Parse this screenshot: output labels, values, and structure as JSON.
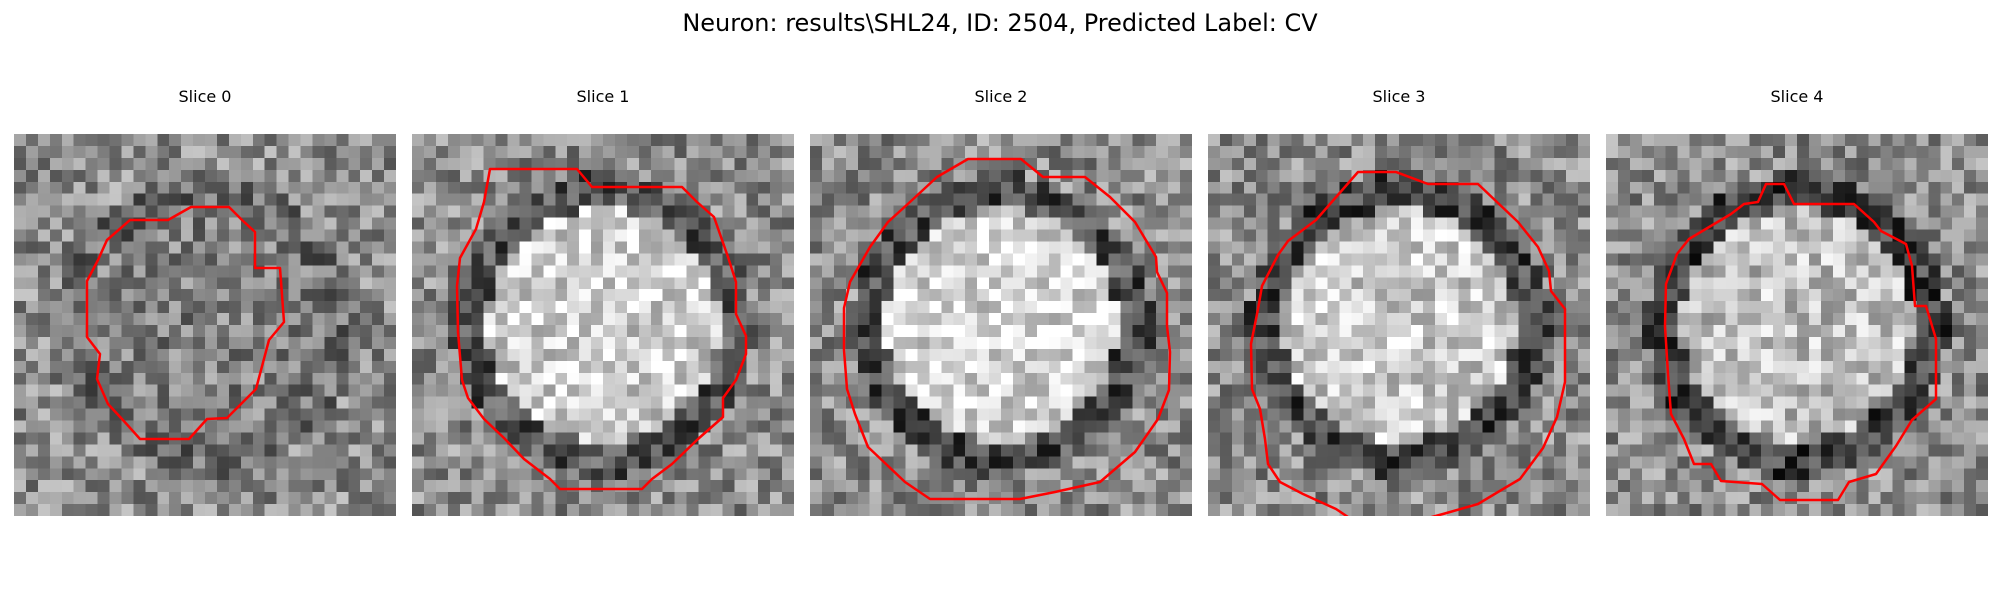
{
  "figure": {
    "title": "Neuron: results\\SHL24, ID: 2504, Predicted Label: CV"
  },
  "slices": [
    {
      "title": "Slice 0",
      "center_brightness": 0.5,
      "rim_darkness": 0.25
    },
    {
      "title": "Slice 1",
      "center_brightness": 0.82,
      "rim_darkness": 0.45
    },
    {
      "title": "Slice 2",
      "center_brightness": 0.85,
      "rim_darkness": 0.5
    },
    {
      "title": "Slice 3",
      "center_brightness": 0.8,
      "rim_darkness": 0.55
    },
    {
      "title": "Slice 4",
      "center_brightness": 0.75,
      "rim_darkness": 0.6
    }
  ],
  "colors": {
    "contour": "#ff0000",
    "background": "#ffffff"
  }
}
